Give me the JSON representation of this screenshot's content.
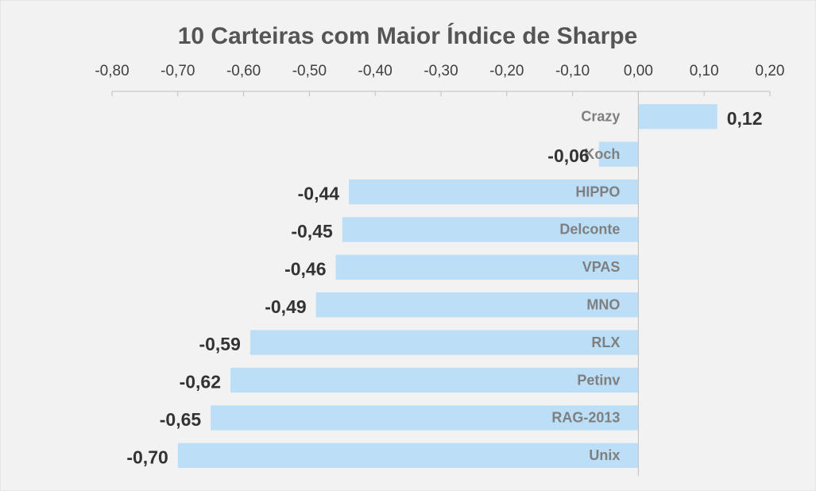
{
  "chart_data": {
    "type": "bar",
    "orientation": "horizontal",
    "title": "10 Carteiras com Maior Índice de Sharpe",
    "categories": [
      "Crazy",
      "Koch",
      "HIPPO",
      "Delconte",
      "VPAS",
      "MNO",
      "RLX",
      "Petinv",
      "RAG-2013",
      "Unix"
    ],
    "values": [
      0.12,
      -0.06,
      -0.44,
      -0.45,
      -0.46,
      -0.49,
      -0.59,
      -0.62,
      -0.65,
      -0.7
    ],
    "value_labels": [
      "0,12",
      "-0,06",
      "-0,44",
      "-0,45",
      "-0,46",
      "-0,49",
      "-0,59",
      "-0,62",
      "-0,65",
      "-0,70"
    ],
    "color": "#bcdff7",
    "xlim": [
      -0.8,
      0.2
    ],
    "xticks": [
      {
        "value": -0.8,
        "label": "-0,80"
      },
      {
        "value": -0.7,
        "label": "-0,70"
      },
      {
        "value": -0.6,
        "label": "-0,60"
      },
      {
        "value": -0.5,
        "label": "-0,50"
      },
      {
        "value": -0.4,
        "label": "-0,40"
      },
      {
        "value": -0.3,
        "label": "-0,30"
      },
      {
        "value": -0.2,
        "label": "-0,20"
      },
      {
        "value": -0.1,
        "label": "-0,10"
      },
      {
        "value": 0,
        "label": "0,00"
      },
      {
        "value": 0.1,
        "label": "0,10"
      },
      {
        "value": 0.2,
        "label": "0,20"
      }
    ],
    "grid": false
  }
}
